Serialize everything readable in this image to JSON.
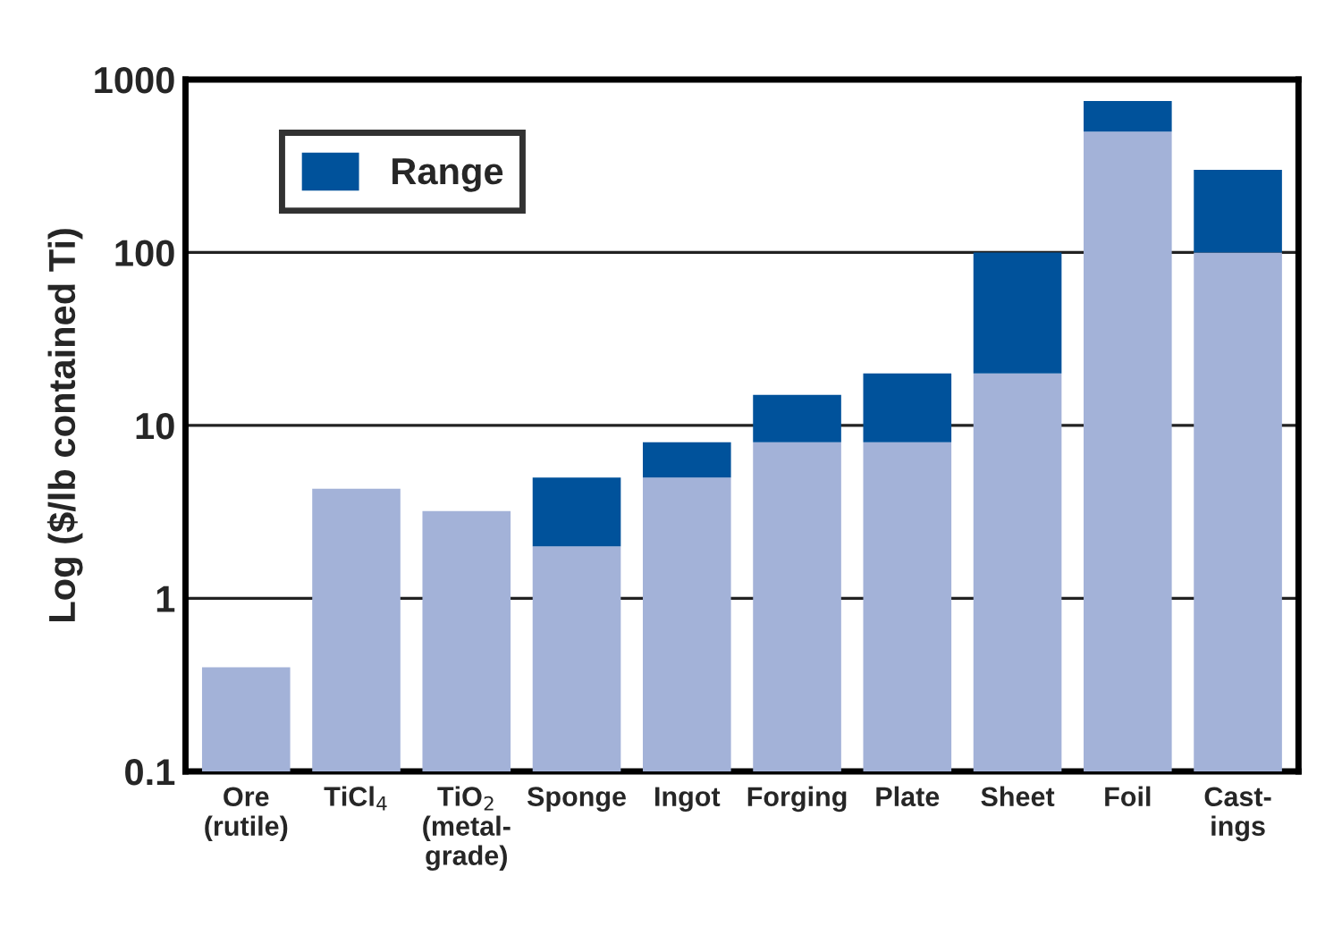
{
  "chart_data": {
    "type": "bar",
    "stacked": true,
    "log": true,
    "ylabel": "Log ($/lb contained Ti)",
    "categories": [
      "Ore\n(rutile)",
      "TiCl$_{4}$",
      "TiO$_{2}$\n(metal-\ngrade)",
      "Sponge",
      "Ingot",
      "Forging",
      "Plate",
      "Sheet",
      "Foil",
      "Cast-\nings"
    ],
    "series": [
      {
        "color": "#a3b2d8",
        "values": [
          0.4,
          4.3,
          3.2,
          2,
          5,
          8,
          8,
          20,
          500,
          100
        ]
      },
      {
        "name": "Range",
        "color": "#00529b",
        "values": [
          null,
          null,
          null,
          3,
          3,
          7,
          12,
          80,
          250,
          200
        ]
      }
    ],
    "ylim": [
      0.1,
      1000
    ],
    "yticks": [
      0.1,
      1,
      10,
      100,
      1000
    ],
    "grid": "y",
    "legend": "top left"
  }
}
